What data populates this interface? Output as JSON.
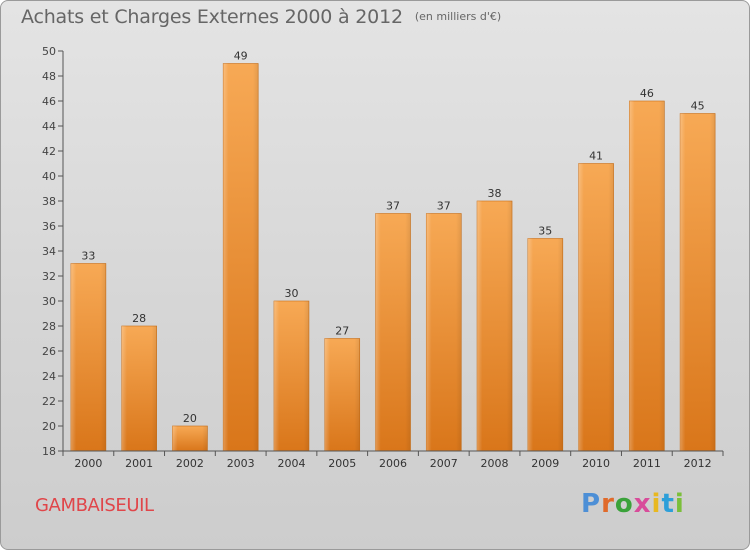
{
  "header": {
    "title": "Achats et Charges Externes 2000 à 2012",
    "unit_note": "(en milliers d'€)"
  },
  "footer": {
    "town": "GAMBAISEUIL",
    "logo_text": "Proxiti"
  },
  "colors": {
    "bar_light": "#f6a550",
    "bar_dark": "#dd7a1c",
    "axis": "#555555",
    "town": "#e0464a"
  },
  "chart_data": {
    "type": "bar",
    "title": "Achats et Charges Externes 2000 à 2012",
    "subtitle": "(en milliers d'€)",
    "xlabel": "",
    "ylabel": "",
    "categories": [
      "2000",
      "2001",
      "2002",
      "2003",
      "2004",
      "2005",
      "2006",
      "2007",
      "2008",
      "2009",
      "2010",
      "2011",
      "2012"
    ],
    "values": [
      33,
      28,
      20,
      49,
      30,
      27,
      37,
      37,
      38,
      35,
      41,
      46,
      45
    ],
    "ylim": [
      18,
      50
    ],
    "yticks": [
      18,
      20,
      22,
      24,
      26,
      28,
      30,
      32,
      34,
      36,
      38,
      40,
      42,
      44,
      46,
      48,
      50
    ],
    "grid": false,
    "legend": "none"
  }
}
